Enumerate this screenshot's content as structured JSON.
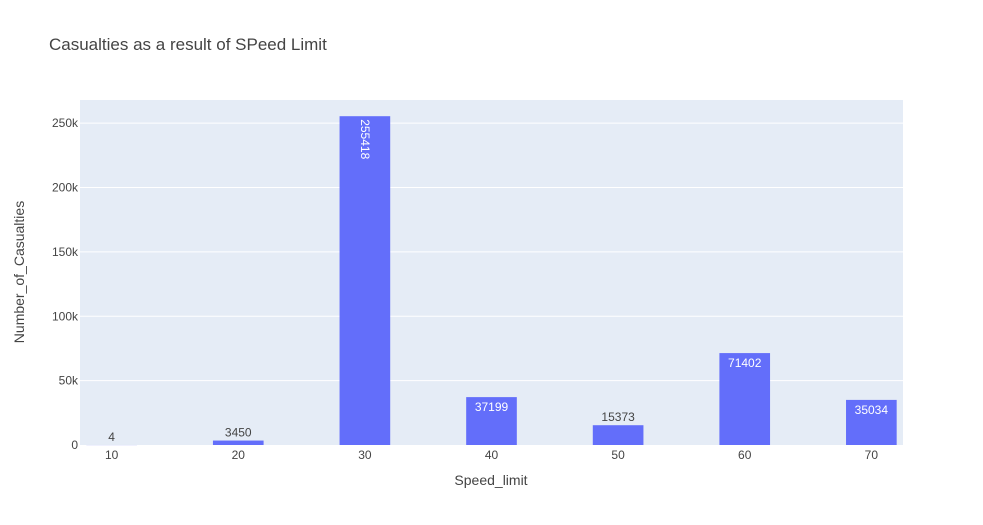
{
  "chart_data": {
    "type": "bar",
    "title": "Casualties as a result of SPeed Limit",
    "xlabel": "Speed_limit",
    "ylabel": "Number_of_Casualties",
    "categories": [
      10,
      20,
      30,
      40,
      50,
      60,
      70
    ],
    "values": [
      4,
      3450,
      255418,
      37199,
      15373,
      71402,
      35034
    ],
    "value_labels": [
      "4",
      "3450",
      "255418",
      "37199",
      "15373",
      "71402",
      "35034"
    ],
    "ylim": [
      0,
      268000
    ],
    "xlim": [
      7.5,
      72.5
    ],
    "yticks": [
      0,
      50000,
      100000,
      150000,
      200000,
      250000
    ],
    "ytick_labels": [
      "0",
      "50k",
      "100k",
      "150k",
      "200k",
      "250k"
    ],
    "xtick_labels": [
      "10",
      "20",
      "30",
      "40",
      "50",
      "60",
      "70"
    ],
    "grid": true,
    "colors": {
      "bar": "#636efa",
      "plot_bg": "#e5ecf6",
      "grid": "#ffffff",
      "text": "#444444"
    }
  }
}
